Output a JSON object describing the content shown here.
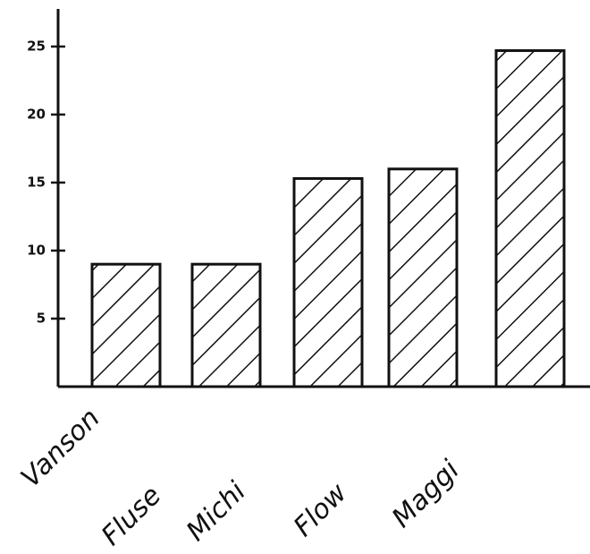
{
  "chart_data": {
    "type": "bar",
    "categories": [
      "Vanson",
      "Fluse",
      "Michi",
      "Flow",
      "Maggi"
    ],
    "values": [
      9,
      9,
      15.3,
      16,
      24.7
    ],
    "color": "#ffffff",
    "ylim": [
      0,
      28
    ],
    "yticks": [
      5,
      10,
      15,
      20,
      25
    ],
    "grid": false
  }
}
